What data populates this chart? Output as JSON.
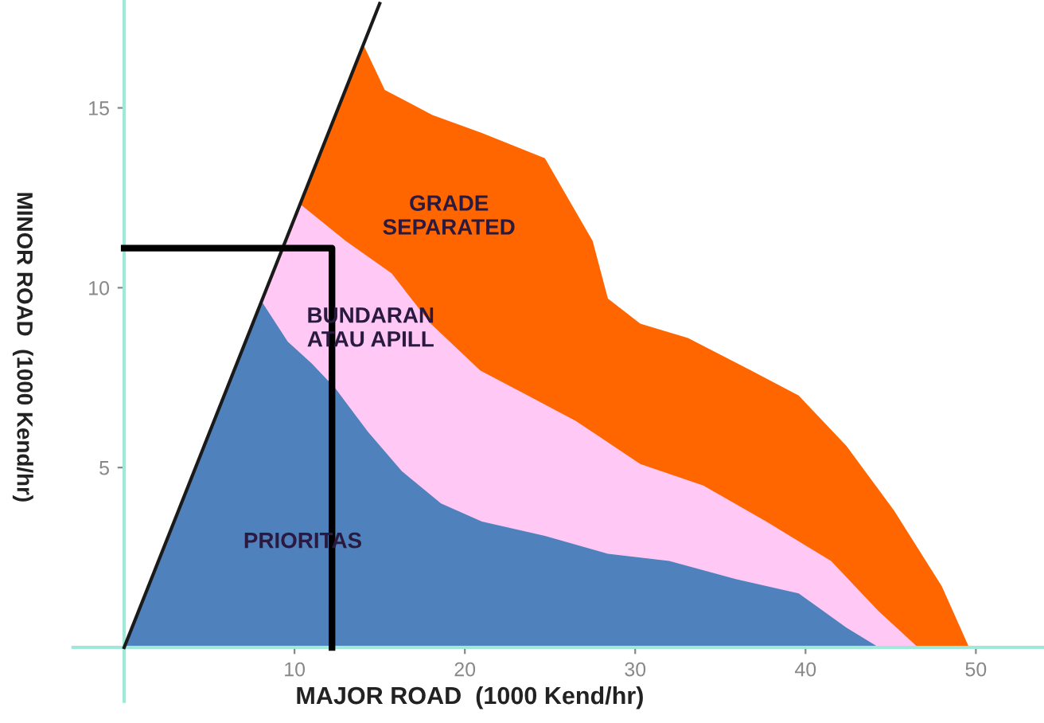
{
  "chart_data": {
    "type": "area",
    "xlabel": "MAJOR ROAD  (1000 Kend/hr)",
    "ylabel": "MINOR ROAD  (1000 Kend/hr)",
    "series": [
      {
        "color": "#ff6600",
        "x": [
          0,
          14.0,
          15.3,
          18.1,
          21.0,
          24.7,
          27.5,
          28.4,
          30.3,
          33.1,
          36.8,
          39.6,
          42.4,
          45.2,
          48.0,
          49.6
        ],
        "values": [
          0,
          16.8,
          15.5,
          14.8,
          14.3,
          13.6,
          11.3,
          9.7,
          9.0,
          8.6,
          7.7,
          7.0,
          5.6,
          3.8,
          1.7,
          0
        ]
      },
      {
        "color": "#ffc8f5",
        "x": [
          0,
          10.4,
          13.0,
          15.7,
          18.0,
          20.9,
          23.7,
          26.5,
          30.3,
          34.0,
          37.7,
          41.5,
          44.3,
          46.6
        ],
        "values": [
          0,
          12.3,
          11.3,
          10.4,
          9.0,
          7.7,
          7.0,
          6.3,
          5.1,
          4.5,
          3.5,
          2.4,
          1.0,
          0
        ]
      },
      {
        "color": "#4f81bd",
        "x": [
          0,
          8.1,
          9.6,
          11.0,
          12.4,
          14.3,
          16.3,
          18.6,
          21.0,
          24.7,
          28.4,
          32.0,
          35.9,
          39.6,
          42.4,
          44.3
        ],
        "values": [
          0,
          9.6,
          8.5,
          7.9,
          7.2,
          6.0,
          4.9,
          4.0,
          3.5,
          3.1,
          2.6,
          2.4,
          1.9,
          1.5,
          0.55,
          0
        ]
      },
      {
        "type": "line",
        "color": "#1a1a1a",
        "x": [
          0,
          15.0
        ],
        "values": [
          0,
          17.9
        ]
      },
      {
        "type": "line",
        "color": "#000000",
        "x": [
          0,
          12.2,
          12.2
        ],
        "values": [
          11.1,
          11.1,
          0
        ]
      }
    ],
    "annotations": [
      "GRADE\nSEPARATED",
      "BUNDARAN\nATAU APILL",
      "PRIORITAS"
    ],
    "xlim": [
      -3,
      54
    ],
    "ylim": [
      -1.5,
      18
    ],
    "xticks": [
      10,
      20,
      30,
      40,
      50
    ],
    "yticks": [
      5,
      10,
      15
    ],
    "grid": false,
    "legend": false
  }
}
